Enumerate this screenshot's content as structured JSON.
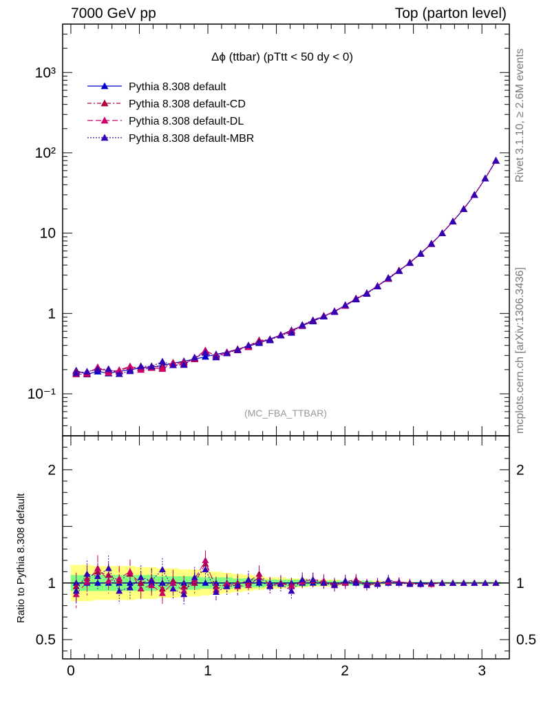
{
  "header": {
    "left": "7000 GeV pp",
    "right": "Top (parton level)"
  },
  "side_labels": {
    "rivet": "Rivet 3.1.10, ≥ 2.6M events",
    "source": "mcplots.cern.ch [arXiv:1306.3436]"
  },
  "chart_data": {
    "type": "line",
    "title": "Δϕ (ttbar) (pTtt < 50 dy < 0)",
    "watermark": "(MC_FBA_TTBAR)",
    "xlim": [
      -0.06,
      3.2
    ],
    "main_panel": {
      "yscale": "log",
      "ylim": [
        0.03,
        4000
      ],
      "yticks": [
        {
          "value": 0.1,
          "label": "10⁻¹"
        },
        {
          "value": 1,
          "label": "1"
        },
        {
          "value": 10,
          "label": "10"
        },
        {
          "value": 100,
          "label": "10²"
        },
        {
          "value": 1000,
          "label": "10³"
        }
      ]
    },
    "ratio_panel": {
      "ylabel": "Ratio to Pythia 8.308 default",
      "ylim": [
        0.33,
        2.3
      ],
      "yticks": [
        0.5,
        1,
        2
      ],
      "band_green_halfwidth": [
        0.07,
        0.07,
        0.07,
        0.07,
        0.07,
        0.07,
        0.07,
        0.07,
        0.06,
        0.06,
        0.06,
        0.06,
        0.05,
        0.05,
        0.05,
        0.04,
        0.04,
        0.04,
        0.03,
        0.03,
        0.03,
        0.03,
        0.02,
        0.02,
        0.02,
        0.02,
        0.02,
        0.02,
        0.01,
        0.01,
        0.01,
        0.01,
        0.01,
        0.01,
        0.01,
        0.01,
        0.01,
        0.01,
        0.01,
        0.01
      ],
      "band_yellow_halfwidth": [
        0.16,
        0.16,
        0.15,
        0.15,
        0.15,
        0.15,
        0.14,
        0.14,
        0.13,
        0.13,
        0.12,
        0.12,
        0.11,
        0.1,
        0.09,
        0.08,
        0.07,
        0.06,
        0.05,
        0.05,
        0.04,
        0.04,
        0.03,
        0.03,
        0.03,
        0.02,
        0.02,
        0.02,
        0.02,
        0.01,
        0.01,
        0.01,
        0.01,
        0.01,
        0.01,
        0.01,
        0.01,
        0.01,
        0.01,
        0.01
      ]
    },
    "xticks": [
      0,
      1,
      2,
      3
    ],
    "x": [
      0.039,
      0.118,
      0.196,
      0.275,
      0.353,
      0.432,
      0.511,
      0.589,
      0.668,
      0.746,
      0.825,
      0.903,
      0.982,
      1.06,
      1.139,
      1.217,
      1.296,
      1.374,
      1.453,
      1.532,
      1.61,
      1.689,
      1.767,
      1.846,
      1.924,
      2.003,
      2.081,
      2.16,
      2.238,
      2.317,
      2.395,
      2.474,
      2.553,
      2.631,
      2.71,
      2.788,
      2.867,
      2.945,
      3.024,
      3.102
    ],
    "series": [
      {
        "name": "Pythia 8.308 default",
        "color": "#0000cc",
        "values": [
          0.195,
          0.175,
          0.19,
          0.18,
          0.19,
          0.2,
          0.21,
          0.215,
          0.225,
          0.24,
          0.255,
          0.27,
          0.29,
          0.31,
          0.33,
          0.36,
          0.39,
          0.43,
          0.48,
          0.54,
          0.62,
          0.7,
          0.8,
          0.92,
          1.07,
          1.25,
          1.5,
          1.8,
          2.2,
          2.7,
          3.4,
          4.3,
          5.6,
          7.4,
          10,
          14,
          20,
          30,
          48,
          80
        ]
      },
      {
        "name": "Pythia 8.308 default-CD",
        "color": "#b30040",
        "ratio": [
          0.97,
          1.04,
          1.1,
          1.07,
          1.02,
          1.08,
          1.0,
          1.03,
          0.95,
          1.02,
          0.97,
          1.0,
          1.17,
          0.97,
          0.99,
          1.0,
          1.01,
          1.08,
          0.98,
          1.0,
          0.98,
          1.02,
          1.02,
          1.01,
          0.99,
          1.01,
          1.03,
          0.99,
          1.0,
          1.02,
          1.01,
          1.0,
          0.99,
          0.99,
          1.0,
          1.0,
          1.0,
          1.0,
          1.0,
          1.0
        ]
      },
      {
        "name": "Pythia 8.308 default-DL",
        "color": "#cc0066",
        "ratio": [
          0.9,
          1.01,
          1.13,
          1.02,
          1.04,
          1.1,
          0.95,
          0.98,
          0.91,
          1.0,
          0.93,
          1.03,
          1.2,
          0.94,
          1.0,
          0.97,
          0.98,
          1.05,
          0.98,
          1.0,
          0.97,
          1.01,
          1.03,
          1.02,
          0.98,
          1.0,
          1.02,
          0.98,
          1.0,
          1.01,
          1.01,
          1.0,
          0.99,
          1.0,
          1.0,
          1.0,
          1.0,
          1.0,
          1.0,
          1.0
        ]
      },
      {
        "name": "Pythia 8.308 default-MBR",
        "color": "#3300b3",
        "ratio": [
          0.93,
          1.08,
          1.06,
          1.13,
          0.93,
          0.96,
          1.05,
          1.02,
          1.12,
          0.95,
          0.9,
          1.05,
          1.12,
          0.92,
          0.97,
          0.98,
          1.03,
          1.02,
          0.97,
          0.99,
          0.93,
          1.03,
          1.03,
          1.0,
          0.98,
          1.02,
          1.01,
          0.98,
          0.99,
          1.03,
          1.0,
          0.99,
          0.99,
          1.0,
          1.0,
          1.0,
          1.0,
          1.0,
          1.0,
          1.0
        ]
      }
    ]
  }
}
